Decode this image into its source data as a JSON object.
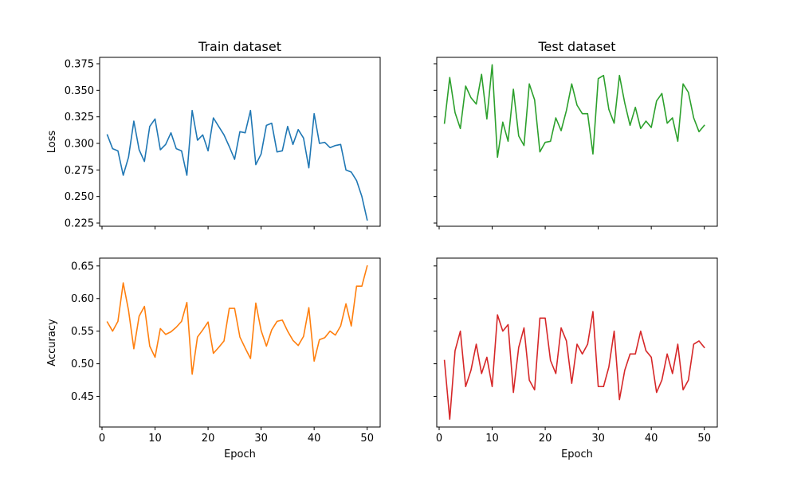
{
  "chart_data": [
    {
      "type": "line",
      "title": "Train dataset",
      "xlabel": "",
      "ylabel": "Loss",
      "xlim": [
        -0.45,
        52.45
      ],
      "ylim": [
        0.222,
        0.381
      ],
      "xticks": [
        0,
        10,
        20,
        30,
        40,
        50
      ],
      "show_xticklabels": false,
      "yticks": [
        0.225,
        0.25,
        0.275,
        0.3,
        0.325,
        0.35,
        0.375
      ],
      "yticklabels": [
        "0.225",
        "0.250",
        "0.275",
        "0.300",
        "0.325",
        "0.350",
        "0.375"
      ],
      "show_yticklabels": true,
      "grid": false,
      "color": "#1f77b4",
      "series": [
        {
          "x": [
            1,
            2,
            3,
            4,
            5,
            6,
            7,
            8,
            9,
            10,
            11,
            12,
            13,
            14,
            15,
            16,
            17,
            18,
            19,
            20,
            21,
            22,
            23,
            24,
            25,
            26,
            27,
            28,
            29,
            30,
            31,
            32,
            33,
            34,
            35,
            36,
            37,
            38,
            39,
            40,
            41,
            42,
            43,
            44,
            45,
            46,
            47,
            48,
            49,
            50
          ],
          "values": [
            0.308,
            0.295,
            0.293,
            0.27,
            0.287,
            0.321,
            0.294,
            0.283,
            0.316,
            0.323,
            0.294,
            0.299,
            0.31,
            0.295,
            0.293,
            0.27,
            0.331,
            0.303,
            0.308,
            0.293,
            0.324,
            0.316,
            0.308,
            0.297,
            0.285,
            0.311,
            0.31,
            0.331,
            0.28,
            0.29,
            0.317,
            0.319,
            0.292,
            0.293,
            0.316,
            0.299,
            0.313,
            0.305,
            0.277,
            0.328,
            0.3,
            0.301,
            0.296,
            0.298,
            0.299,
            0.275,
            0.273,
            0.265,
            0.25,
            0.228
          ]
        }
      ]
    },
    {
      "type": "line",
      "title": "Test dataset",
      "xlabel": "",
      "ylabel": "",
      "xlim": [
        -0.45,
        52.45
      ],
      "ylim": [
        0.222,
        0.381
      ],
      "xticks": [
        0,
        10,
        20,
        30,
        40,
        50
      ],
      "show_xticklabels": false,
      "yticks": [
        0.225,
        0.25,
        0.275,
        0.3,
        0.325,
        0.35,
        0.375
      ],
      "show_yticklabels": false,
      "grid": false,
      "color": "#2ca02c",
      "series": [
        {
          "x": [
            1,
            2,
            3,
            4,
            5,
            6,
            7,
            8,
            9,
            10,
            11,
            12,
            13,
            14,
            15,
            16,
            17,
            18,
            19,
            20,
            21,
            22,
            23,
            24,
            25,
            26,
            27,
            28,
            29,
            30,
            31,
            32,
            33,
            34,
            35,
            36,
            37,
            38,
            39,
            40,
            41,
            42,
            43,
            44,
            45,
            46,
            47,
            48,
            49,
            50
          ],
          "values": [
            0.319,
            0.362,
            0.329,
            0.314,
            0.354,
            0.343,
            0.337,
            0.365,
            0.323,
            0.374,
            0.287,
            0.32,
            0.302,
            0.351,
            0.307,
            0.298,
            0.356,
            0.341,
            0.292,
            0.301,
            0.302,
            0.324,
            0.312,
            0.331,
            0.356,
            0.336,
            0.328,
            0.328,
            0.29,
            0.361,
            0.364,
            0.332,
            0.319,
            0.364,
            0.338,
            0.317,
            0.334,
            0.314,
            0.321,
            0.315,
            0.34,
            0.347,
            0.319,
            0.324,
            0.302,
            0.356,
            0.348,
            0.324,
            0.311,
            0.317
          ]
        }
      ]
    },
    {
      "type": "line",
      "title": "",
      "xlabel": "Epoch",
      "ylabel": "Accuracy",
      "xlim": [
        -0.45,
        52.45
      ],
      "ylim": [
        0.403,
        0.662
      ],
      "xticks": [
        0,
        10,
        20,
        30,
        40,
        50
      ],
      "xticklabels": [
        "0",
        "10",
        "20",
        "30",
        "40",
        "50"
      ],
      "show_xticklabels": true,
      "yticks": [
        0.45,
        0.5,
        0.55,
        0.6,
        0.65
      ],
      "yticklabels": [
        "0.45",
        "0.50",
        "0.55",
        "0.60",
        "0.65"
      ],
      "show_yticklabels": true,
      "grid": false,
      "color": "#ff7f0e",
      "series": [
        {
          "x": [
            1,
            2,
            3,
            4,
            5,
            6,
            7,
            8,
            9,
            10,
            11,
            12,
            13,
            14,
            15,
            16,
            17,
            18,
            19,
            20,
            21,
            22,
            23,
            24,
            25,
            26,
            27,
            28,
            29,
            30,
            31,
            32,
            33,
            34,
            35,
            36,
            37,
            38,
            39,
            40,
            41,
            42,
            43,
            44,
            45,
            46,
            47,
            48,
            49,
            50
          ],
          "values": [
            0.564,
            0.55,
            0.565,
            0.624,
            0.582,
            0.523,
            0.573,
            0.588,
            0.527,
            0.51,
            0.554,
            0.545,
            0.549,
            0.556,
            0.565,
            0.594,
            0.484,
            0.541,
            0.552,
            0.564,
            0.516,
            0.525,
            0.535,
            0.585,
            0.585,
            0.541,
            0.524,
            0.508,
            0.593,
            0.551,
            0.527,
            0.552,
            0.565,
            0.567,
            0.55,
            0.536,
            0.528,
            0.542,
            0.586,
            0.504,
            0.537,
            0.54,
            0.55,
            0.544,
            0.558,
            0.592,
            0.558,
            0.619,
            0.619,
            0.65
          ]
        }
      ]
    },
    {
      "type": "line",
      "title": "",
      "xlabel": "Epoch",
      "ylabel": "",
      "xlim": [
        -0.45,
        52.45
      ],
      "ylim": [
        0.403,
        0.662
      ],
      "xticks": [
        0,
        10,
        20,
        30,
        40,
        50
      ],
      "xticklabels": [
        "0",
        "10",
        "20",
        "30",
        "40",
        "50"
      ],
      "show_xticklabels": true,
      "yticks": [
        0.45,
        0.5,
        0.55,
        0.6,
        0.65
      ],
      "show_yticklabels": false,
      "grid": false,
      "color": "#d62728",
      "series": [
        {
          "x": [
            1,
            2,
            3,
            4,
            5,
            6,
            7,
            8,
            9,
            10,
            11,
            12,
            13,
            14,
            15,
            16,
            17,
            18,
            19,
            20,
            21,
            22,
            23,
            24,
            25,
            26,
            27,
            28,
            29,
            30,
            31,
            32,
            33,
            34,
            35,
            36,
            37,
            38,
            39,
            40,
            41,
            42,
            43,
            44,
            45,
            46,
            47,
            48,
            49,
            50
          ],
          "values": [
            0.505,
            0.415,
            0.52,
            0.55,
            0.465,
            0.49,
            0.53,
            0.485,
            0.51,
            0.465,
            0.575,
            0.55,
            0.56,
            0.456,
            0.525,
            0.555,
            0.475,
            0.46,
            0.57,
            0.57,
            0.505,
            0.485,
            0.555,
            0.535,
            0.47,
            0.53,
            0.515,
            0.53,
            0.58,
            0.465,
            0.465,
            0.495,
            0.55,
            0.445,
            0.49,
            0.515,
            0.515,
            0.55,
            0.52,
            0.51,
            0.456,
            0.475,
            0.515,
            0.485,
            0.53,
            0.46,
            0.475,
            0.53,
            0.535,
            0.525
          ]
        }
      ]
    }
  ]
}
